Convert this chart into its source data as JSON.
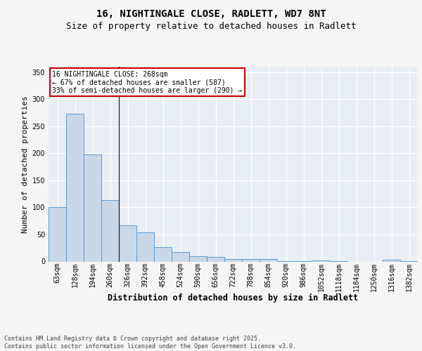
{
  "title_line1": "16, NIGHTINGALE CLOSE, RADLETT, WD7 8NT",
  "title_line2": "Size of property relative to detached houses in Radlett",
  "xlabel": "Distribution of detached houses by size in Radlett",
  "ylabel": "Number of detached properties",
  "categories": [
    "63sqm",
    "128sqm",
    "194sqm",
    "260sqm",
    "326sqm",
    "392sqm",
    "458sqm",
    "524sqm",
    "590sqm",
    "656sqm",
    "722sqm",
    "788sqm",
    "854sqm",
    "920sqm",
    "986sqm",
    "1052sqm",
    "1118sqm",
    "1184sqm",
    "1250sqm",
    "1316sqm",
    "1382sqm"
  ],
  "values": [
    101,
    273,
    198,
    114,
    67,
    54,
    27,
    18,
    10,
    9,
    4,
    5,
    4,
    1,
    1,
    2,
    1,
    0,
    0,
    3,
    1
  ],
  "bar_color": "#c8d8e8",
  "bar_edge_color": "#5b9bd5",
  "annotation_box_text": "16 NIGHTINGALE CLOSE: 268sqm\n← 67% of detached houses are smaller (587)\n33% of semi-detached houses are larger (290) →",
  "annotation_box_color": "#ffffff",
  "annotation_box_edge_color": "#cc0000",
  "ylim": [
    0,
    360
  ],
  "yticks": [
    0,
    50,
    100,
    150,
    200,
    250,
    300,
    350
  ],
  "background_color": "#e8eef4",
  "grid_color": "#ffffff",
  "footer_text": "Contains HM Land Registry data © Crown copyright and database right 2025.\nContains public sector information licensed under the Open Government Licence v3.0.",
  "fig_bg_color": "#f5f5f5",
  "title_fontsize": 10,
  "subtitle_fontsize": 9,
  "tick_fontsize": 7,
  "ylabel_fontsize": 8,
  "xlabel_fontsize": 8.5
}
